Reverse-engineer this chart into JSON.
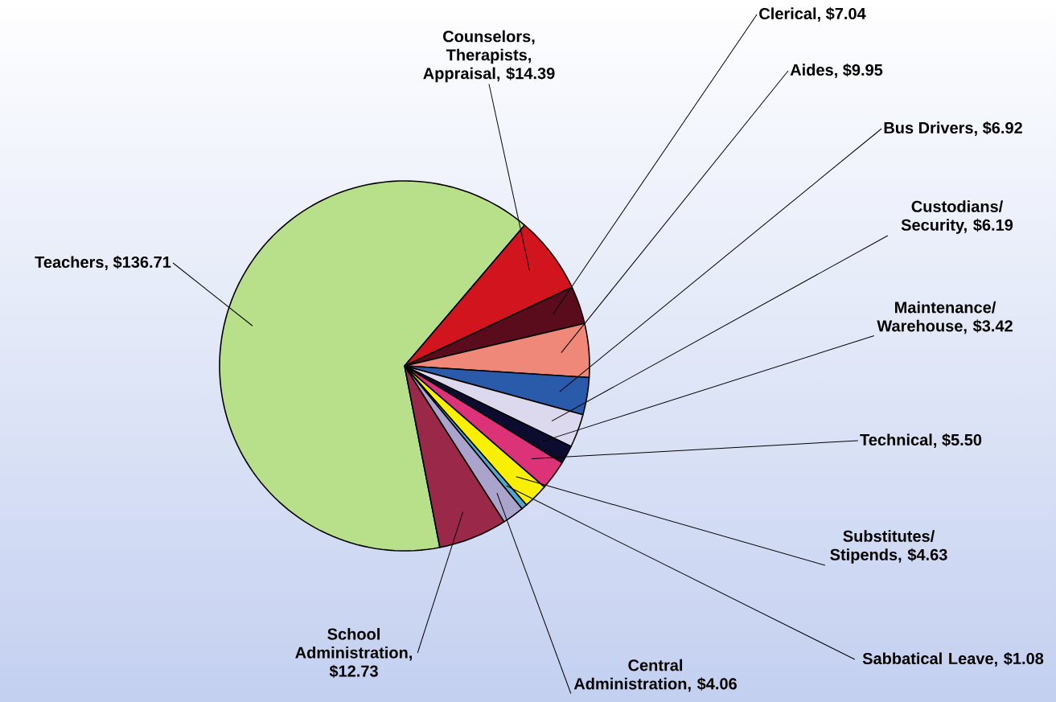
{
  "chart_data": {
    "type": "pie",
    "categories": [
      "Teachers, $136.71",
      "Counselors, Therapists, Appraisal, $14.39",
      "Clerical, $7.04",
      "Aides, $9.95",
      "Bus Drivers, $6.92",
      "Custodians/ Security, $6.19",
      "Maintenance/ Warehouse, $3.42",
      "Technical, $5.50",
      "Substitutes/ Stipends, $4.63",
      "Sabbatical Leave, $1.08",
      "Central Administration, $4.06",
      "School Administration, $12.73"
    ],
    "values": [
      136.71,
      14.39,
      7.04,
      9.95,
      6.92,
      6.19,
      3.42,
      5.5,
      4.63,
      1.08,
      4.06,
      12.73
    ],
    "colors": [
      "#b8e08a",
      "#d2141e",
      "#5a0c1c",
      "#f0887a",
      "#2a5aaa",
      "#dcd8ee",
      "#0c0c30",
      "#dc3278",
      "#f8f000",
      "#50a8c8",
      "#aaa4cc",
      "#9a2848"
    ]
  }
}
